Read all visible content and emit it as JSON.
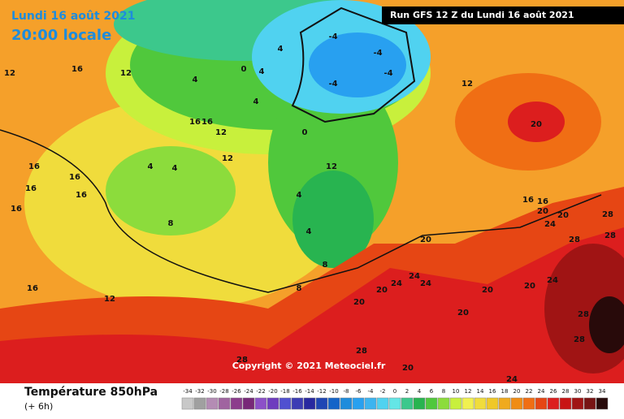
{
  "header": {
    "date": "Lundi 16 août 2021",
    "time": "20:00 locale",
    "run": "Run GFS 12 Z du Lundi 16 août 2021",
    "copyright": "Copyright © 2021 Meteociel.fr"
  },
  "footer": {
    "title": "Température 850hPa",
    "step": "(+ 6h)"
  },
  "legend": [
    {
      "value": -34,
      "color": "#c8c8c8"
    },
    {
      "value": -32,
      "color": "#a0a0a0"
    },
    {
      "value": -30,
      "color": "#b48cb4"
    },
    {
      "value": -28,
      "color": "#a064a0"
    },
    {
      "value": -26,
      "color": "#8c3c8c"
    },
    {
      "value": -24,
      "color": "#782878"
    },
    {
      "value": -22,
      "color": "#8c50c8"
    },
    {
      "value": -20,
      "color": "#6e3cbe"
    },
    {
      "value": -18,
      "color": "#5050d0"
    },
    {
      "value": -16,
      "color": "#3c3cb4"
    },
    {
      "value": -14,
      "color": "#2828a0"
    },
    {
      "value": -12,
      "color": "#1e46b4"
    },
    {
      "value": -10,
      "color": "#1464c8"
    },
    {
      "value": -8,
      "color": "#1e8cdc"
    },
    {
      "value": -6,
      "color": "#28a0f0"
    },
    {
      "value": -4,
      "color": "#3cb4f0"
    },
    {
      "value": -2,
      "color": "#50d2f0"
    },
    {
      "value": 0,
      "color": "#64e6e6"
    },
    {
      "value": 2,
      "color": "#3cc88c"
    },
    {
      "value": 4,
      "color": "#28b450"
    },
    {
      "value": 6,
      "color": "#50c83c"
    },
    {
      "value": 8,
      "color": "#8cdc3c"
    },
    {
      "value": 10,
      "color": "#c8f03c"
    },
    {
      "value": 12,
      "color": "#f0f050"
    },
    {
      "value": 14,
      "color": "#f0dc3c"
    },
    {
      "value": 16,
      "color": "#f0c828"
    },
    {
      "value": 18,
      "color": "#f0aa1e"
    },
    {
      "value": 20,
      "color": "#f08c14"
    },
    {
      "value": 22,
      "color": "#f06e14"
    },
    {
      "value": 24,
      "color": "#e64614"
    },
    {
      "value": 26,
      "color": "#dc1e1e"
    },
    {
      "value": 28,
      "color": "#c81414"
    },
    {
      "value": 30,
      "color": "#a01414"
    },
    {
      "value": 32,
      "color": "#781414"
    },
    {
      "value": 34,
      "color": "#280a0a"
    }
  ],
  "contour_labels": [
    12,
    16,
    12,
    4,
    0,
    4,
    4,
    4,
    -4,
    -4,
    -4,
    -4,
    0,
    12,
    16,
    16,
    12,
    12,
    4,
    4,
    8,
    16,
    16,
    16,
    16,
    12,
    20,
    16,
    16,
    20,
    24,
    20,
    28,
    28,
    20,
    24,
    24,
    20,
    20,
    24,
    20,
    28,
    24,
    28,
    20,
    28,
    28,
    24,
    20,
    28,
    20,
    16,
    16,
    12,
    8,
    8,
    4,
    4
  ]
}
